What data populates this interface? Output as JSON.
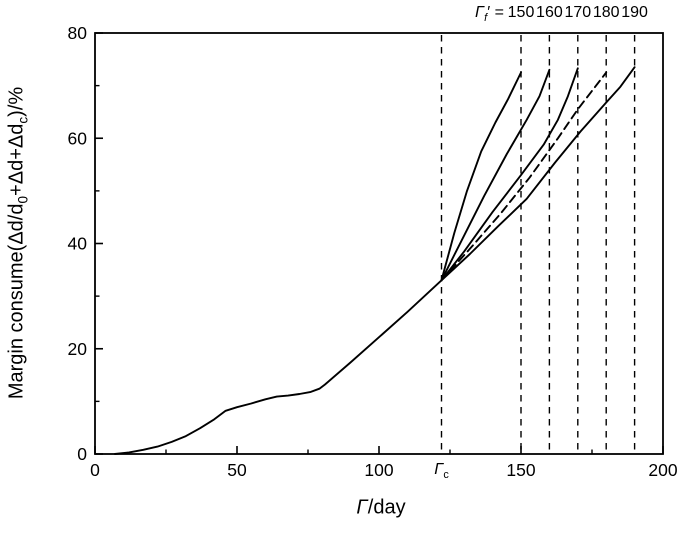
{
  "chart_data": {
    "type": "line",
    "title": "",
    "xlabel_rich": [
      {
        "t": "Γ",
        "italic": true
      },
      {
        "t": "/day"
      }
    ],
    "ylabel_rich": [
      {
        "t": "Margin consume(Δd/d"
      },
      {
        "t": "0",
        "sub": true
      },
      {
        "t": "+Δd+Δd"
      },
      {
        "t": "c",
        "sub": true
      },
      {
        "t": ")/%"
      }
    ],
    "xlim": [
      0,
      200
    ],
    "ylim": [
      0,
      80
    ],
    "x_major_ticks": [
      0,
      50,
      100,
      150,
      200
    ],
    "x_minor_ticks": [
      25,
      75,
      125,
      175
    ],
    "y_major_ticks": [
      0,
      20,
      40,
      60,
      80
    ],
    "y_minor_ticks": [
      10,
      30,
      50,
      70
    ],
    "grid": false,
    "special_x_tick": {
      "x": 122,
      "label_rich": [
        {
          "t": "Γ",
          "italic": true
        },
        {
          "t": "c",
          "sub": true
        }
      ]
    },
    "vlines": {
      "style": "dashed",
      "x": [
        122,
        150,
        160,
        170,
        180,
        190
      ]
    },
    "annotation": {
      "prefix_rich": [
        {
          "t": "Γ",
          "italic": true
        },
        {
          "t": "f",
          "sub": true,
          "italic": true
        },
        {
          "t": "′"
        },
        {
          "t": " = "
        }
      ],
      "values": [
        150,
        160,
        170,
        180,
        190
      ]
    },
    "branch_point": [
      122,
      33
    ],
    "series": [
      {
        "name": "base-curve",
        "style": "solid",
        "points": [
          [
            7,
            0
          ],
          [
            12,
            0.3
          ],
          [
            17,
            0.8
          ],
          [
            22,
            1.4
          ],
          [
            27,
            2.3
          ],
          [
            32,
            3.4
          ],
          [
            37,
            4.9
          ],
          [
            42,
            6.6
          ],
          [
            46,
            8.2
          ],
          [
            50,
            8.9
          ],
          [
            55,
            9.6
          ],
          [
            60,
            10.4
          ],
          [
            64,
            10.9
          ],
          [
            68,
            11.1
          ],
          [
            72,
            11.4
          ],
          [
            76,
            11.8
          ],
          [
            79,
            12.4
          ],
          [
            81,
            13.2
          ],
          [
            90,
            17.4
          ],
          [
            100,
            22.2
          ],
          [
            110,
            27
          ],
          [
            122,
            33
          ]
        ]
      },
      {
        "name": "branch-150",
        "style": "solid",
        "points": [
          [
            122,
            33
          ],
          [
            126.5,
            42
          ],
          [
            131,
            50
          ],
          [
            136,
            57.5
          ],
          [
            141,
            63
          ],
          [
            145.5,
            67.5
          ],
          [
            150,
            72.5
          ]
        ]
      },
      {
        "name": "branch-160",
        "style": "solid",
        "points": [
          [
            122,
            33
          ],
          [
            129,
            40.5
          ],
          [
            137,
            49
          ],
          [
            145,
            57
          ],
          [
            152,
            63.5
          ],
          [
            156.5,
            68
          ],
          [
            160,
            73
          ]
        ]
      },
      {
        "name": "branch-170",
        "style": "solid",
        "points": [
          [
            122,
            33
          ],
          [
            130,
            38.5
          ],
          [
            140,
            46
          ],
          [
            150,
            53
          ],
          [
            158,
            58.8
          ],
          [
            163,
            63.5
          ],
          [
            166.5,
            68
          ],
          [
            170,
            73.3
          ]
        ]
      },
      {
        "name": "branch-180",
        "style": "dashed",
        "points": [
          [
            122,
            33
          ],
          [
            132,
            39
          ],
          [
            143,
            45.8
          ],
          [
            153,
            52.5
          ],
          [
            163,
            60
          ],
          [
            170,
            65.5
          ],
          [
            175,
            69
          ],
          [
            180,
            72.5
          ]
        ]
      },
      {
        "name": "branch-190",
        "style": "solid",
        "points": [
          [
            122,
            33
          ],
          [
            132,
            38
          ],
          [
            142,
            43.3
          ],
          [
            152,
            48.5
          ],
          [
            162,
            55.4
          ],
          [
            171,
            61.3
          ],
          [
            180,
            66.8
          ],
          [
            185,
            69.8
          ],
          [
            190,
            73.5
          ]
        ]
      }
    ],
    "colors": {
      "line": "#000000",
      "background": "#ffffff"
    }
  }
}
